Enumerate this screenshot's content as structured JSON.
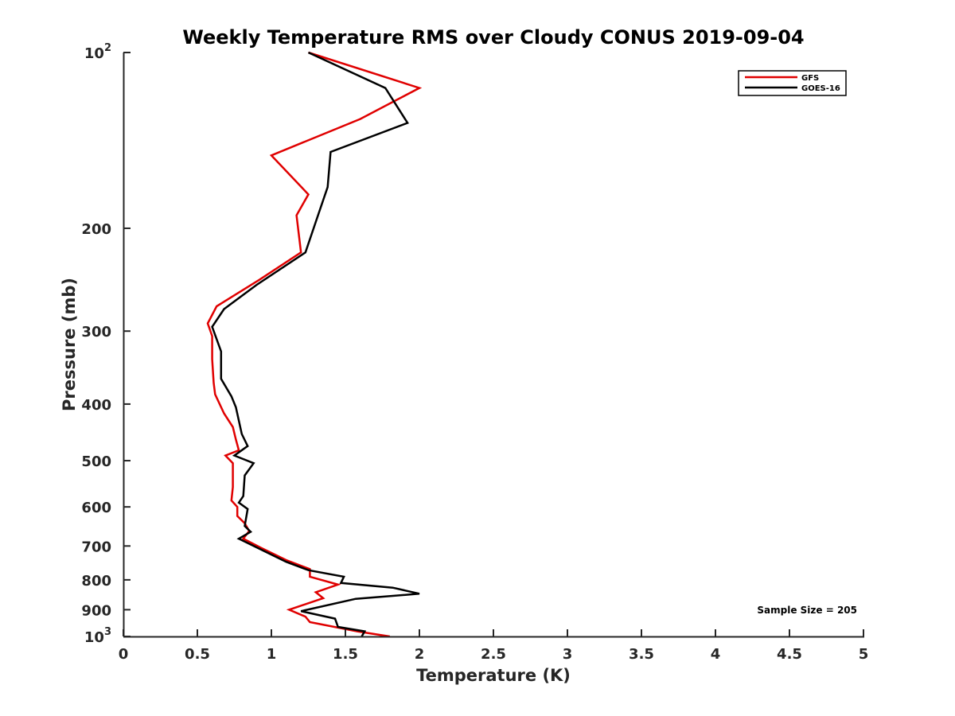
{
  "chart_data": {
    "type": "line",
    "title": "Weekly Temperature RMS over Cloudy CONUS 2019-09-04",
    "xlabel": "Temperature (K)",
    "ylabel": "Pressure (mb)",
    "xlim": [
      0,
      5
    ],
    "ylim": [
      100,
      1000
    ],
    "y_scale": "log",
    "y_reversed": true,
    "grid": false,
    "legend_position": "top-right",
    "x_ticks": [
      0,
      0.5,
      1,
      1.5,
      2,
      2.5,
      3,
      3.5,
      4,
      4.5,
      5
    ],
    "x_tick_labels": [
      "0",
      "0.5",
      "1",
      "1.5",
      "2",
      "2.5",
      "3",
      "3.5",
      "4",
      "4.5",
      "5"
    ],
    "y_ticks": [
      {
        "value": 100,
        "base": "10",
        "exp": "2",
        "label": ""
      },
      {
        "value": 200,
        "label": "200"
      },
      {
        "value": 300,
        "label": "300"
      },
      {
        "value": 400,
        "label": "400"
      },
      {
        "value": 500,
        "label": "500"
      },
      {
        "value": 600,
        "label": "600"
      },
      {
        "value": 700,
        "label": "700"
      },
      {
        "value": 800,
        "label": "800"
      },
      {
        "value": 900,
        "label": "900"
      },
      {
        "value": 1000,
        "base": "10",
        "exp": "3",
        "label": ""
      }
    ],
    "annotation": "Sample Size = 205",
    "series": [
      {
        "name": "GFS",
        "color": "#e00000",
        "points": [
          {
            "x": 1.25,
            "y": 100
          },
          {
            "x": 2.0,
            "y": 115
          },
          {
            "x": 1.6,
            "y": 130
          },
          {
            "x": 1.0,
            "y": 150
          },
          {
            "x": 1.25,
            "y": 175
          },
          {
            "x": 1.17,
            "y": 190
          },
          {
            "x": 1.2,
            "y": 220
          },
          {
            "x": 0.92,
            "y": 245
          },
          {
            "x": 0.63,
            "y": 272
          },
          {
            "x": 0.57,
            "y": 291
          },
          {
            "x": 0.6,
            "y": 306
          },
          {
            "x": 0.6,
            "y": 335
          },
          {
            "x": 0.61,
            "y": 368
          },
          {
            "x": 0.62,
            "y": 385
          },
          {
            "x": 0.68,
            "y": 415
          },
          {
            "x": 0.74,
            "y": 438
          },
          {
            "x": 0.76,
            "y": 460
          },
          {
            "x": 0.78,
            "y": 480
          },
          {
            "x": 0.69,
            "y": 490
          },
          {
            "x": 0.74,
            "y": 505
          },
          {
            "x": 0.74,
            "y": 555
          },
          {
            "x": 0.73,
            "y": 585
          },
          {
            "x": 0.77,
            "y": 600
          },
          {
            "x": 0.77,
            "y": 622
          },
          {
            "x": 0.82,
            "y": 640
          },
          {
            "x": 0.85,
            "y": 660
          },
          {
            "x": 0.81,
            "y": 680
          },
          {
            "x": 0.93,
            "y": 705
          },
          {
            "x": 1.1,
            "y": 740
          },
          {
            "x": 1.26,
            "y": 767
          },
          {
            "x": 1.26,
            "y": 790
          },
          {
            "x": 1.45,
            "y": 815
          },
          {
            "x": 1.3,
            "y": 840
          },
          {
            "x": 1.35,
            "y": 860
          },
          {
            "x": 1.12,
            "y": 900
          },
          {
            "x": 1.23,
            "y": 925
          },
          {
            "x": 1.26,
            "y": 945
          },
          {
            "x": 1.58,
            "y": 980
          },
          {
            "x": 1.8,
            "y": 1000
          }
        ]
      },
      {
        "name": "GOES-16",
        "color": "#000000",
        "points": [
          {
            "x": 1.25,
            "y": 100
          },
          {
            "x": 1.77,
            "y": 115
          },
          {
            "x": 1.92,
            "y": 132
          },
          {
            "x": 1.4,
            "y": 148
          },
          {
            "x": 1.38,
            "y": 170
          },
          {
            "x": 1.3,
            "y": 195
          },
          {
            "x": 1.23,
            "y": 220
          },
          {
            "x": 0.9,
            "y": 250
          },
          {
            "x": 0.68,
            "y": 275
          },
          {
            "x": 0.6,
            "y": 295
          },
          {
            "x": 0.66,
            "y": 325
          },
          {
            "x": 0.66,
            "y": 362
          },
          {
            "x": 0.73,
            "y": 388
          },
          {
            "x": 0.76,
            "y": 405
          },
          {
            "x": 0.8,
            "y": 450
          },
          {
            "x": 0.84,
            "y": 472
          },
          {
            "x": 0.75,
            "y": 490
          },
          {
            "x": 0.88,
            "y": 505
          },
          {
            "x": 0.82,
            "y": 530
          },
          {
            "x": 0.81,
            "y": 575
          },
          {
            "x": 0.78,
            "y": 590
          },
          {
            "x": 0.84,
            "y": 605
          },
          {
            "x": 0.82,
            "y": 647
          },
          {
            "x": 0.86,
            "y": 662
          },
          {
            "x": 0.78,
            "y": 680
          },
          {
            "x": 1.1,
            "y": 745
          },
          {
            "x": 1.25,
            "y": 770
          },
          {
            "x": 1.49,
            "y": 790
          },
          {
            "x": 1.47,
            "y": 810
          },
          {
            "x": 1.82,
            "y": 825
          },
          {
            "x": 2.0,
            "y": 845
          },
          {
            "x": 1.57,
            "y": 862
          },
          {
            "x": 1.2,
            "y": 905
          },
          {
            "x": 1.43,
            "y": 932
          },
          {
            "x": 1.45,
            "y": 963
          },
          {
            "x": 1.63,
            "y": 980
          },
          {
            "x": 1.61,
            "y": 1000
          }
        ]
      }
    ]
  }
}
